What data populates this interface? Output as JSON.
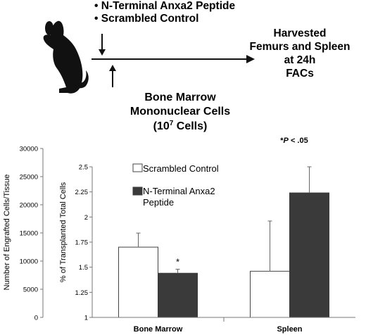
{
  "schematic": {
    "treatments": [
      "• N-Terminal Anxa2 Peptide",
      "• Scrambled Control"
    ],
    "harvest_lines": [
      "Harvested",
      "Femurs and Spleen",
      "at 24h",
      "FACs"
    ],
    "cells_lines": [
      "Bone Marrow",
      "Mononuclear Cells"
    ],
    "cells_count_prefix": "(10",
    "cells_count_exp": "7",
    "cells_count_suffix": " Cells)",
    "mouse_icon": "mouse-silhouette-icon"
  },
  "significance_note_prefix": "*",
  "significance_note_p": "P",
  "significance_note_suffix": " < .05",
  "colors": {
    "scrambled": "#ffffff",
    "anxa2": "#3a3a3a",
    "axis": "#777777",
    "grid_line": "#999999"
  },
  "chart_data": {
    "type": "bar",
    "categories": [
      "Bone Marrow",
      "Spleen"
    ],
    "series": [
      {
        "name": "Scrambled Control",
        "values": [
          1.7,
          1.46
        ],
        "error_upper": [
          1.84,
          1.96
        ]
      },
      {
        "name": "N-Terminal Anxa2 Peptide",
        "values": [
          1.44,
          2.24
        ],
        "error_upper": [
          1.48,
          2.5
        ]
      }
    ],
    "significance_marks": [
      {
        "category": "Bone Marrow",
        "series": "N-Terminal Anxa2 Peptide",
        "label": "*"
      }
    ],
    "ylabel": "% of Transplanted Total Cells",
    "ylim": [
      1,
      2.5
    ],
    "yticks": [
      "1",
      "1.25",
      "1.5",
      "1.75",
      "2",
      "2.25",
      "2.5"
    ],
    "left_axis": {
      "label": "Number of Engrafted Cells/Tissue",
      "range": [
        0,
        30000
      ],
      "ticks": [
        "0",
        "5000",
        "10000",
        "15000",
        "20000",
        "25000",
        "30000"
      ]
    },
    "legend_position": "top-left"
  }
}
